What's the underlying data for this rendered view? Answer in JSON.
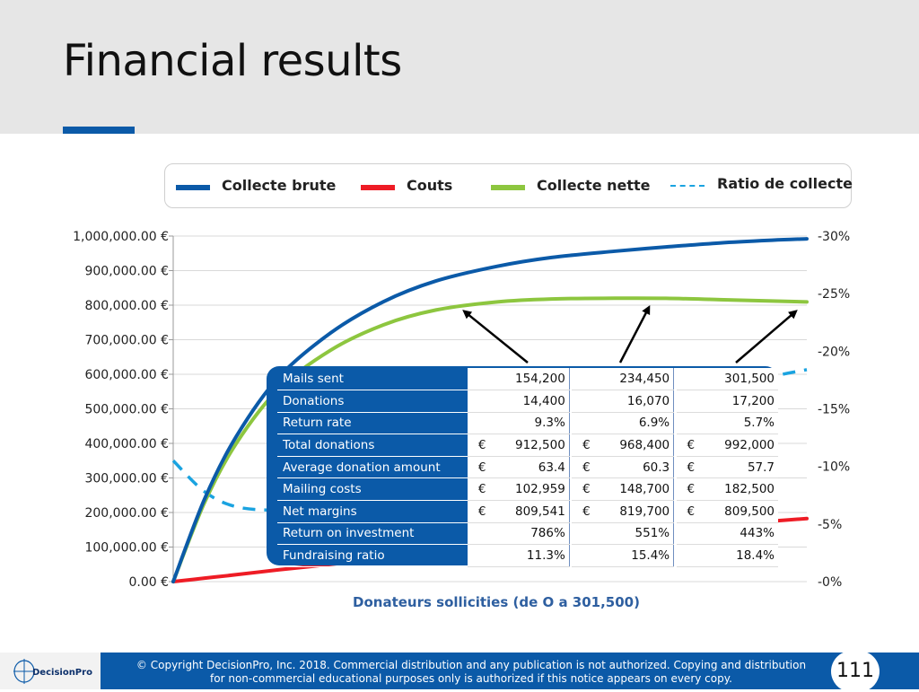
{
  "slide": {
    "title": "Financial results",
    "page_number": "111"
  },
  "footer": {
    "logo_text": "DecisionPro",
    "copyright_line1": "© Copyright DecisionPro, Inc.  2018. Commercial distribution and any publication is not authorized. Copying and distribution",
    "copyright_line2": "for non-commercial educational purposes only is authorized if this notice appears on every copy."
  },
  "legend": {
    "items": [
      {
        "label": "Collecte brute",
        "color": "#0b5aa8",
        "style": "solid"
      },
      {
        "label": "Couts",
        "color": "#ee1c25",
        "style": "solid"
      },
      {
        "label": "Collecte nette",
        "color": "#8dc63f",
        "style": "solid"
      },
      {
        "label": "Ratio de collecte",
        "color": "#1aa3e0",
        "style": "dashed"
      }
    ]
  },
  "chart_data": {
    "type": "line",
    "xlabel": "Donateurs sollicities (de O a 301,500)",
    "ylabel": "",
    "ylim": [
      0,
      1000000
    ],
    "y_ticks": [
      "0.00 €",
      "100,000.00 €",
      "200,000.00 €",
      "300,000.00 €",
      "400,000.00 €",
      "500,000.00 €",
      "600,000.00 €",
      "700,000.00 €",
      "800,000.00 €",
      "900,000.00 €",
      "1,000,000.00 €"
    ],
    "y2lim": [
      0,
      -30
    ],
    "y2_ticks": [
      "-0%",
      "-5%",
      "-10%",
      "-15%",
      "-20%",
      "-25%",
      "-30%"
    ],
    "xlim": [
      0,
      301500
    ],
    "x": [
      0,
      15000,
      30000,
      50000,
      75000,
      100000,
      125000,
      154200,
      180000,
      210000,
      234450,
      260000,
      285000,
      301500
    ],
    "series": [
      {
        "name": "Collecte brute",
        "axis": "left",
        "values": [
          0,
          240000,
          420000,
          590000,
          720000,
          810000,
          870000,
          912500,
          938000,
          956000,
          968400,
          980000,
          988000,
          992000
        ]
      },
      {
        "name": "Couts",
        "axis": "left",
        "values": [
          0,
          10000,
          20000,
          34000,
          50000,
          67000,
          84000,
          102959,
          114000,
          133000,
          148700,
          163000,
          175000,
          182500
        ]
      },
      {
        "name": "Collecte nette",
        "axis": "left",
        "values": [
          0,
          230000,
          400000,
          556000,
          670000,
          743000,
          786000,
          809541,
          818000,
          820000,
          819700,
          816000,
          812000,
          809500
        ]
      },
      {
        "name": "Ratio de collecte",
        "axis": "right",
        "values": [
          -10.5,
          -7.8,
          -6.5,
          -6.2,
          -6.4,
          -8.0,
          -9.5,
          -11.3,
          -12.5,
          -14.2,
          -15.4,
          -16.6,
          -17.8,
          -18.4
        ]
      }
    ],
    "annotation_columns": [
      "154,200",
      "234,450",
      "301,500"
    ],
    "table": {
      "rows": [
        {
          "label": "Mails sent",
          "currency": false,
          "values": [
            "154,200",
            "234,450",
            "301,500"
          ]
        },
        {
          "label": "Donations",
          "currency": false,
          "values": [
            "14,400",
            "16,070",
            "17,200"
          ]
        },
        {
          "label": "Return rate",
          "currency": false,
          "values": [
            "9.3%",
            "6.9%",
            "5.7%"
          ]
        },
        {
          "label": "Total donations",
          "currency": true,
          "values": [
            "912,500",
            "968,400",
            "992,000"
          ]
        },
        {
          "label": "Average donation amount",
          "currency": true,
          "values": [
            "63.4",
            "60.3",
            "57.7"
          ]
        },
        {
          "label": "Mailing costs",
          "currency": true,
          "values": [
            "102,959",
            "148,700",
            "182,500"
          ]
        },
        {
          "label": "Net margins",
          "currency": true,
          "values": [
            "809,541",
            "819,700",
            "809,500"
          ]
        },
        {
          "label": "Return on investment",
          "currency": false,
          "values": [
            "786%",
            "551%",
            "443%"
          ]
        },
        {
          "label": "Fundraising ratio",
          "currency": false,
          "values": [
            "11.3%",
            "15.4%",
            "18.4%"
          ]
        }
      ],
      "currency_symbol": "€"
    }
  }
}
